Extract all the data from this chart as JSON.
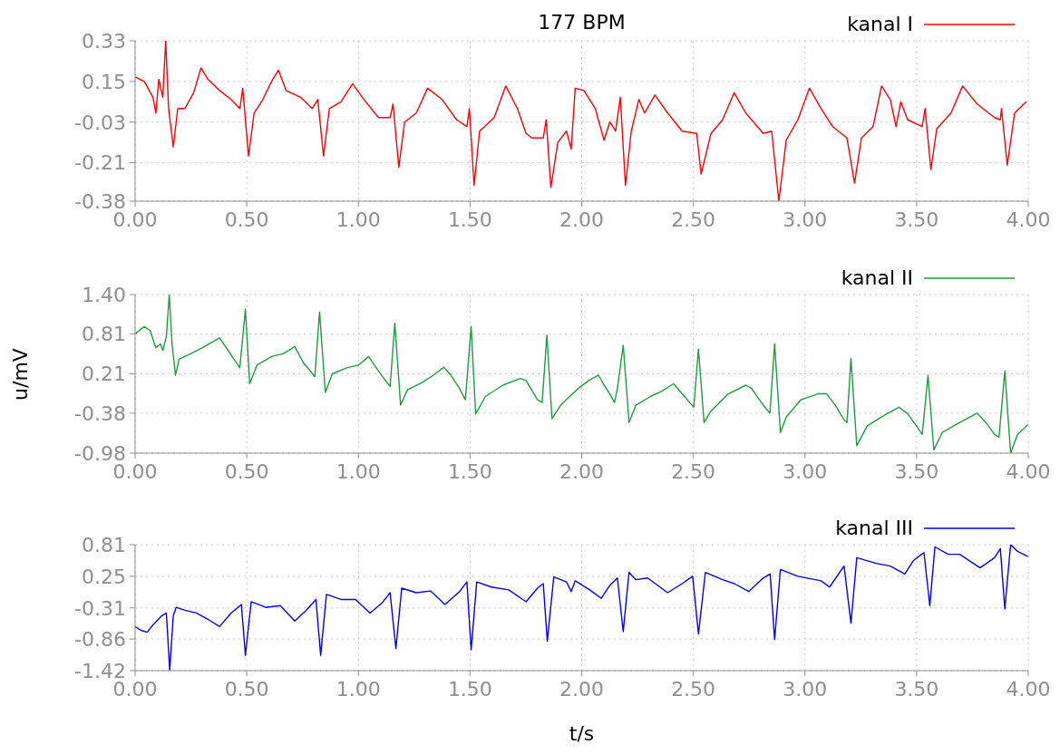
{
  "chart_data": [
    {
      "type": "line",
      "title": "177 BPM",
      "grid": true,
      "legend": "top right",
      "xlim": [
        0,
        4
      ],
      "xticks": [
        {
          "value": 0,
          "label": "0.00"
        },
        {
          "value": 0.5,
          "label": "0.50"
        },
        {
          "value": 1,
          "label": "1.00"
        },
        {
          "value": 1.5,
          "label": "1.50"
        },
        {
          "value": 2,
          "label": "2.00"
        },
        {
          "value": 2.5,
          "label": "2.50"
        },
        {
          "value": 3,
          "label": "3.00"
        },
        {
          "value": 3.5,
          "label": "3.50"
        },
        {
          "value": 4,
          "label": "4.00"
        }
      ],
      "ylim": [
        -0.38,
        0.33
      ],
      "yticks": [
        -0.38,
        -0.21,
        -0.03,
        0.15,
        0.33
      ],
      "series": [
        {
          "name": "kanal I",
          "color": "#ff0000",
          "x": [
            0,
            0.041,
            0.08,
            0.093,
            0.106,
            0.124,
            0.137,
            0.15,
            0.171,
            0.191,
            0.223,
            0.262,
            0.295,
            0.326,
            0.378,
            0.43,
            0.469,
            0.482,
            0.508,
            0.533,
            0.572,
            0.611,
            0.642,
            0.676,
            0.741,
            0.793,
            0.818,
            0.844,
            0.87,
            0.922,
            0.974,
            1.025,
            1.09,
            1.142,
            1.155,
            1.181,
            1.207,
            1.259,
            1.31,
            1.375,
            1.44,
            1.486,
            1.497,
            1.518,
            1.543,
            1.608,
            1.66,
            1.712,
            1.751,
            1.777,
            1.828,
            1.841,
            1.862,
            1.893,
            1.932,
            1.953,
            1.971,
            2.01,
            2.061,
            2.1,
            2.126,
            2.152,
            2.173,
            2.196,
            2.222,
            2.256,
            2.282,
            2.328,
            2.385,
            2.45,
            2.515,
            2.535,
            2.579,
            2.631,
            2.683,
            2.735,
            2.813,
            2.851,
            2.883,
            2.916,
            2.968,
            3.02,
            3.072,
            3.124,
            3.188,
            3.222,
            3.253,
            3.305,
            3.343,
            3.382,
            3.408,
            3.429,
            3.46,
            3.525,
            3.538,
            3.564,
            3.59,
            3.654,
            3.706,
            3.771,
            3.849,
            3.875,
            3.88,
            3.906,
            3.939,
            3.991
          ],
          "values": [
            0.17,
            0.15,
            0.08,
            0.01,
            0.16,
            0.08,
            0.33,
            0.03,
            -0.14,
            0.03,
            0.03,
            0.1,
            0.21,
            0.16,
            0.11,
            0.07,
            0.03,
            0.12,
            -0.18,
            0.01,
            0.07,
            0.15,
            0.2,
            0.11,
            0.08,
            0.03,
            0.07,
            -0.18,
            0.03,
            0.06,
            0.14,
            0.07,
            -0.01,
            -0.01,
            0.05,
            -0.23,
            -0.03,
            0.01,
            0.12,
            0.07,
            -0.02,
            -0.05,
            0.03,
            -0.31,
            -0.07,
            -0.01,
            0.13,
            0.03,
            -0.08,
            -0.1,
            -0.1,
            -0.02,
            -0.32,
            -0.12,
            -0.07,
            -0.15,
            0.12,
            0.11,
            0.03,
            -0.11,
            -0.03,
            -0.07,
            0.08,
            -0.31,
            -0.07,
            0.07,
            0.01,
            0.09,
            0.01,
            -0.07,
            -0.08,
            -0.26,
            -0.08,
            -0.02,
            0.1,
            0.01,
            -0.08,
            -0.07,
            -0.38,
            -0.11,
            -0.02,
            0.12,
            0.03,
            -0.05,
            -0.1,
            -0.3,
            -0.1,
            -0.05,
            0.13,
            0.07,
            -0.05,
            0.06,
            -0.02,
            -0.05,
            0.03,
            -0.24,
            -0.06,
            0.01,
            0.13,
            0.05,
            -0.01,
            -0.02,
            0.03,
            -0.22,
            0.01,
            0.06
          ]
        }
      ]
    },
    {
      "type": "line",
      "ylabel": "u/mV",
      "grid": true,
      "legend": "top right",
      "xlim": [
        0,
        4
      ],
      "xticks": [
        {
          "value": 0,
          "label": "0.00"
        },
        {
          "value": 0.5,
          "label": "0.50"
        },
        {
          "value": 1,
          "label": "1.00"
        },
        {
          "value": 1.5,
          "label": "1.50"
        },
        {
          "value": 2,
          "label": "2.00"
        },
        {
          "value": 2.5,
          "label": "2.50"
        },
        {
          "value": 3,
          "label": "3.00"
        },
        {
          "value": 3.5,
          "label": "3.50"
        },
        {
          "value": 4,
          "label": "4.00"
        }
      ],
      "ylim": [
        -0.98,
        1.4
      ],
      "yticks": [
        -0.98,
        -0.38,
        0.21,
        0.81,
        {
          "value": 1.4,
          "label": "1.40"
        }
      ],
      "series": [
        {
          "name": "kanal II",
          "color": "#1f9e3f",
          "x": [
            0,
            0.041,
            0.067,
            0.093,
            0.114,
            0.124,
            0.14,
            0.153,
            0.166,
            0.181,
            0.197,
            0.248,
            0.3,
            0.378,
            0.417,
            0.469,
            0.494,
            0.513,
            0.546,
            0.611,
            0.663,
            0.715,
            0.753,
            0.805,
            0.826,
            0.852,
            0.883,
            0.948,
            1.0,
            1.046,
            1.09,
            1.142,
            1.163,
            1.189,
            1.22,
            1.285,
            1.336,
            1.383,
            1.414,
            1.453,
            1.479,
            1.505,
            1.525,
            1.569,
            1.647,
            1.725,
            1.751,
            1.802,
            1.823,
            1.844,
            1.867,
            1.906,
            1.984,
            2.036,
            2.075,
            2.1,
            2.126,
            2.147,
            2.16,
            2.186,
            2.212,
            2.243,
            2.308,
            2.359,
            2.411,
            2.45,
            2.489,
            2.502,
            2.523,
            2.548,
            2.579,
            2.657,
            2.735,
            2.761,
            2.813,
            2.843,
            2.864,
            2.89,
            2.916,
            2.981,
            3.059,
            3.097,
            3.136,
            3.175,
            3.188,
            3.206,
            3.232,
            3.279,
            3.356,
            3.421,
            3.46,
            3.499,
            3.525,
            3.551,
            3.577,
            3.615,
            3.693,
            3.771,
            3.81,
            3.849,
            3.869,
            3.895,
            3.921,
            3.952,
            3.999
          ],
          "values": [
            0.81,
            0.92,
            0.86,
            0.6,
            0.66,
            0.56,
            0.77,
            1.4,
            0.64,
            0.19,
            0.43,
            0.51,
            0.6,
            0.75,
            0.56,
            0.3,
            1.18,
            0.06,
            0.34,
            0.47,
            0.51,
            0.62,
            0.38,
            0.17,
            1.14,
            -0.07,
            0.21,
            0.3,
            0.34,
            0.47,
            0.25,
            0.02,
            0.97,
            -0.26,
            -0.03,
            0.08,
            0.19,
            0.31,
            0.19,
            -0.01,
            -0.18,
            0.92,
            -0.39,
            -0.13,
            0.04,
            0.14,
            0.11,
            -0.18,
            -0.22,
            0.79,
            -0.46,
            -0.26,
            -0.01,
            0.12,
            0.19,
            0.04,
            -0.09,
            -0.22,
            -0.01,
            0.64,
            -0.52,
            -0.26,
            -0.13,
            -0.05,
            0.06,
            -0.09,
            -0.24,
            -0.29,
            0.58,
            -0.52,
            -0.35,
            -0.09,
            0.04,
            -0.01,
            -0.26,
            -0.38,
            0.66,
            -0.67,
            -0.44,
            -0.18,
            -0.09,
            -0.09,
            -0.26,
            -0.48,
            -0.52,
            0.44,
            -0.87,
            -0.57,
            -0.41,
            -0.29,
            -0.39,
            -0.57,
            -0.7,
            0.19,
            -0.93,
            -0.67,
            -0.52,
            -0.38,
            -0.52,
            -0.7,
            -0.74,
            0.25,
            -0.98,
            -0.7,
            -0.55
          ]
        }
      ]
    },
    {
      "type": "line",
      "xlabel": "t/s",
      "grid": true,
      "legend": "top right",
      "xlim": [
        0,
        4
      ],
      "xticks": [
        {
          "value": 0,
          "label": "0.00"
        },
        {
          "value": 0.5,
          "label": "0.50"
        },
        {
          "value": 1,
          "label": "1.00"
        },
        {
          "value": 1.5,
          "label": "1.50"
        },
        {
          "value": 2,
          "label": "2.00"
        },
        {
          "value": 2.5,
          "label": "2.50"
        },
        {
          "value": 3,
          "label": "3.00"
        },
        {
          "value": 3.5,
          "label": "3.50"
        },
        {
          "value": 4,
          "label": "4.00"
        }
      ],
      "ylim": [
        -1.42,
        0.81
      ],
      "yticks": [
        -1.42,
        -0.86,
        -0.31,
        0.25,
        0.81
      ],
      "series": [
        {
          "name": "kanal III",
          "color": "#0000ff",
          "x": [
            0,
            0.028,
            0.054,
            0.08,
            0.119,
            0.14,
            0.155,
            0.171,
            0.184,
            0.223,
            0.274,
            0.326,
            0.378,
            0.43,
            0.476,
            0.494,
            0.52,
            0.585,
            0.65,
            0.715,
            0.767,
            0.81,
            0.831,
            0.857,
            0.922,
            0.987,
            1.052,
            1.104,
            1.142,
            1.168,
            1.194,
            1.259,
            1.323,
            1.388,
            1.453,
            1.486,
            1.505,
            1.53,
            1.595,
            1.673,
            1.751,
            1.802,
            1.828,
            1.846,
            1.875,
            1.932,
            1.953,
            1.971,
            2.036,
            2.088,
            2.126,
            2.16,
            2.186,
            2.212,
            2.243,
            2.295,
            2.385,
            2.45,
            2.497,
            2.523,
            2.554,
            2.631,
            2.683,
            2.748,
            2.813,
            2.844,
            2.864,
            2.89,
            2.968,
            3.072,
            3.11,
            3.175,
            3.206,
            3.232,
            3.318,
            3.382,
            3.447,
            3.486,
            3.533,
            3.559,
            3.582,
            3.641,
            3.693,
            3.784,
            3.849,
            3.875,
            3.895,
            3.921,
            3.952,
            3.999
          ],
          "values": [
            -0.64,
            -0.71,
            -0.74,
            -0.61,
            -0.45,
            -0.4,
            -1.41,
            -0.45,
            -0.3,
            -0.35,
            -0.4,
            -0.51,
            -0.64,
            -0.4,
            -0.25,
            -1.15,
            -0.2,
            -0.3,
            -0.27,
            -0.54,
            -0.35,
            -0.16,
            -1.15,
            -0.07,
            -0.16,
            -0.16,
            -0.4,
            -0.23,
            -0.04,
            -1.03,
            0.04,
            -0.04,
            -0.01,
            -0.25,
            -0.02,
            0.15,
            -1.05,
            0.15,
            0.06,
            0.01,
            -0.2,
            0.04,
            0.12,
            -0.9,
            0.24,
            0.15,
            -0.02,
            0.17,
            0.01,
            -0.14,
            0.09,
            0.22,
            -0.73,
            0.32,
            0.19,
            0.22,
            -0.04,
            0.12,
            0.25,
            -0.77,
            0.32,
            0.19,
            0.12,
            -0.02,
            0.22,
            0.29,
            -0.87,
            0.37,
            0.25,
            0.17,
            0.06,
            0.43,
            -0.58,
            0.58,
            0.48,
            0.43,
            0.29,
            0.53,
            0.67,
            -0.27,
            0.77,
            0.64,
            0.64,
            0.4,
            0.58,
            0.74,
            -0.33,
            0.81,
            0.69,
            0.6
          ]
        }
      ]
    }
  ]
}
